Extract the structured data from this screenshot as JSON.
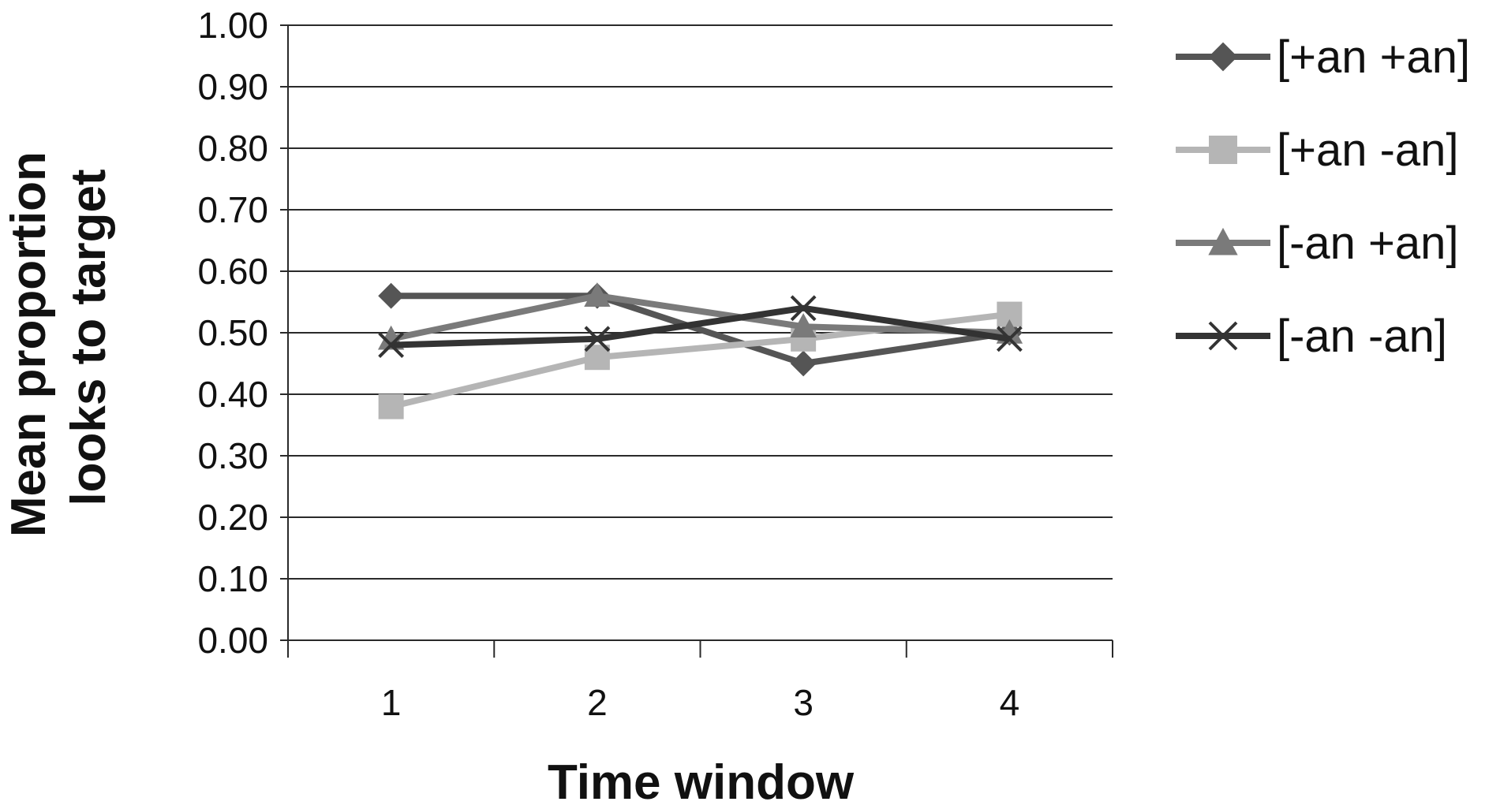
{
  "chart_data": {
    "type": "line",
    "title": "",
    "xlabel": "Time window",
    "ylabel_lines": [
      "Mean proportion",
      "looks to target"
    ],
    "categories": [
      "1",
      "2",
      "3",
      "4"
    ],
    "ylim": [
      0,
      1
    ],
    "yticks": [
      "0.00",
      "0.10",
      "0.20",
      "0.30",
      "0.40",
      "0.50",
      "0.60",
      "0.70",
      "0.80",
      "0.90",
      "1.00"
    ],
    "grid": true,
    "legend_position": "right",
    "series": [
      {
        "name": "[+an +an]",
        "values": [
          0.56,
          0.56,
          0.45,
          0.5
        ],
        "color": "#555555",
        "marker": "diamond"
      },
      {
        "name": "[+an -an]",
        "values": [
          0.38,
          0.46,
          0.49,
          0.53
        ],
        "color": "#b5b5b5",
        "marker": "square"
      },
      {
        "name": "[-an +an]",
        "values": [
          0.49,
          0.56,
          0.51,
          0.5
        ],
        "color": "#7a7a7a",
        "marker": "triangle"
      },
      {
        "name": "[-an -an]",
        "values": [
          0.48,
          0.49,
          0.54,
          0.49
        ],
        "color": "#333333",
        "marker": "x"
      }
    ]
  }
}
